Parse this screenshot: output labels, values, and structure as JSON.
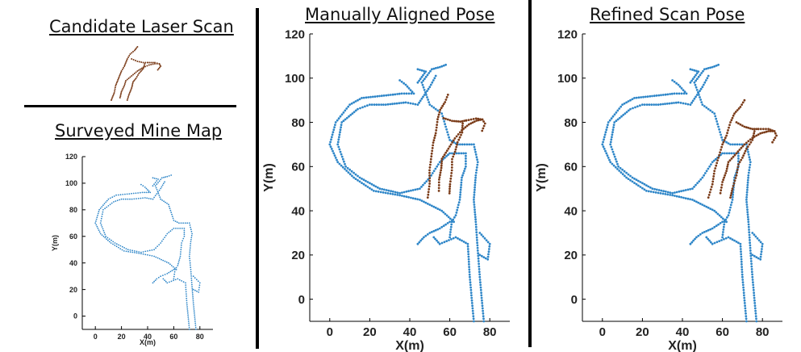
{
  "figure": {
    "candidate_title": "Candidate Laser Scan",
    "mine_map_title": "Surveyed Mine Map",
    "manual_title": "Manually Aligned Pose",
    "refined_title": "Refined Scan Pose"
  },
  "colors": {
    "map_points": "#2e86c8",
    "scan_points": "#7a3b18",
    "divider": "#000000"
  },
  "chart_data": [
    {
      "type": "scatter",
      "title": "Surveyed Mine Map",
      "xlabel": "X(m)",
      "ylabel": "Y(m)",
      "xlim": [
        -10,
        90
      ],
      "ylim": [
        -10,
        120
      ],
      "xticks": [
        "0",
        "20",
        "40",
        "60",
        "80"
      ],
      "yticks": [
        "0",
        "20",
        "40",
        "60",
        "80",
        "100",
        "120"
      ],
      "series": [
        {
          "points": "map"
        }
      ]
    },
    {
      "type": "scatter",
      "title": "Manually Aligned Pose",
      "xlabel": "X(m)",
      "ylabel": "Y(m)",
      "xlim": [
        -10,
        90
      ],
      "ylim": [
        -10,
        120
      ],
      "xticks": [
        "0",
        "20",
        "40",
        "60",
        "80"
      ],
      "yticks": [
        "0",
        "20",
        "40",
        "60",
        "80",
        "100",
        "120"
      ],
      "series": [
        {
          "points": "map"
        },
        {
          "points": "scan",
          "pose": "manual"
        }
      ]
    },
    {
      "type": "scatter",
      "title": "Refined Scan Pose",
      "xlabel": "X(m)",
      "ylabel": "Y(m)",
      "xlim": [
        -10,
        90
      ],
      "ylim": [
        -10,
        120
      ],
      "xticks": [
        "0",
        "20",
        "40",
        "60",
        "80"
      ],
      "yticks": [
        "0",
        "20",
        "40",
        "60",
        "80",
        "100",
        "120"
      ],
      "series": [
        {
          "points": "map"
        },
        {
          "points": "scan",
          "pose": "refined"
        }
      ]
    }
  ],
  "map_polylines": [
    [
      [
        72,
        -10
      ],
      [
        70,
        10
      ],
      [
        69,
        25
      ],
      [
        63,
        28
      ],
      [
        55,
        25
      ],
      [
        52,
        28
      ]
    ],
    [
      [
        60,
        28
      ],
      [
        61,
        35
      ],
      [
        63,
        38
      ],
      [
        65,
        45
      ],
      [
        66,
        55
      ],
      [
        68,
        60
      ],
      [
        68,
        66
      ],
      [
        60,
        66
      ],
      [
        55,
        62
      ],
      [
        50,
        55
      ],
      [
        45,
        50
      ],
      [
        35,
        48
      ],
      [
        25,
        50
      ],
      [
        15,
        55
      ],
      [
        8,
        60
      ],
      [
        4,
        70
      ],
      [
        6,
        80
      ],
      [
        14,
        86
      ],
      [
        20,
        88
      ],
      [
        28,
        88
      ],
      [
        38,
        89
      ],
      [
        44,
        88
      ],
      [
        50,
        96
      ],
      [
        53,
        101
      ]
    ],
    [
      [
        77,
        -10
      ],
      [
        75,
        10
      ],
      [
        74,
        22
      ],
      [
        73,
        35
      ],
      [
        72,
        45
      ],
      [
        73,
        56
      ],
      [
        74,
        62
      ],
      [
        72,
        70
      ],
      [
        64,
        70
      ],
      [
        60,
        72
      ],
      [
        58,
        78
      ],
      [
        56,
        84
      ],
      [
        50,
        88
      ],
      [
        46,
        98
      ],
      [
        51,
        104
      ],
      [
        55,
        105
      ],
      [
        58,
        106
      ]
    ],
    [
      [
        62,
        35
      ],
      [
        56,
        40
      ],
      [
        45,
        45
      ],
      [
        35,
        47
      ],
      [
        22,
        49
      ],
      [
        12,
        55
      ],
      [
        4,
        62
      ],
      [
        0,
        70
      ],
      [
        3,
        80
      ],
      [
        10,
        88
      ],
      [
        16,
        91
      ],
      [
        26,
        92
      ],
      [
        36,
        93
      ],
      [
        42,
        93
      ],
      [
        38,
        97
      ],
      [
        35,
        99
      ]
    ],
    [
      [
        60,
        35
      ],
      [
        55,
        32
      ],
      [
        50,
        30
      ],
      [
        47,
        28
      ],
      [
        44,
        25
      ]
    ],
    [
      [
        75,
        30
      ],
      [
        80,
        25
      ],
      [
        79,
        18
      ],
      [
        75,
        20
      ]
    ],
    [
      [
        44,
        98
      ],
      [
        48,
        103
      ],
      [
        44,
        104
      ]
    ]
  ],
  "scan_polylines": [
    [
      [
        0,
        0
      ],
      [
        2,
        6
      ],
      [
        3,
        12
      ],
      [
        5,
        18
      ],
      [
        7,
        24
      ],
      [
        9,
        28
      ],
      [
        11,
        34
      ],
      [
        13,
        38
      ],
      [
        16,
        41
      ],
      [
        18,
        44
      ]
    ],
    [
      [
        6,
        2
      ],
      [
        7,
        7
      ],
      [
        9,
        12
      ],
      [
        10,
        16
      ],
      [
        14,
        20
      ],
      [
        18,
        24
      ],
      [
        22,
        27
      ],
      [
        26,
        29
      ],
      [
        30,
        30
      ],
      [
        33,
        30
      ],
      [
        34,
        28
      ],
      [
        32,
        25
      ]
    ],
    [
      [
        23,
        30
      ],
      [
        22,
        26
      ],
      [
        19,
        22
      ],
      [
        17,
        18
      ],
      [
        15,
        15
      ],
      [
        14,
        10
      ],
      [
        12,
        4
      ],
      [
        11,
        0
      ]
    ],
    [
      [
        14,
        34
      ],
      [
        18,
        32
      ],
      [
        22,
        31
      ],
      [
        25,
        31
      ]
    ],
    [
      [
        25,
        31
      ],
      [
        30,
        31
      ],
      [
        33,
        30
      ]
    ]
  ],
  "scan_poses": {
    "manual": {
      "dx": 49,
      "dy": 46,
      "rot": 10
    },
    "refined": {
      "dx": 53,
      "dy": 46,
      "rot": 0
    }
  }
}
